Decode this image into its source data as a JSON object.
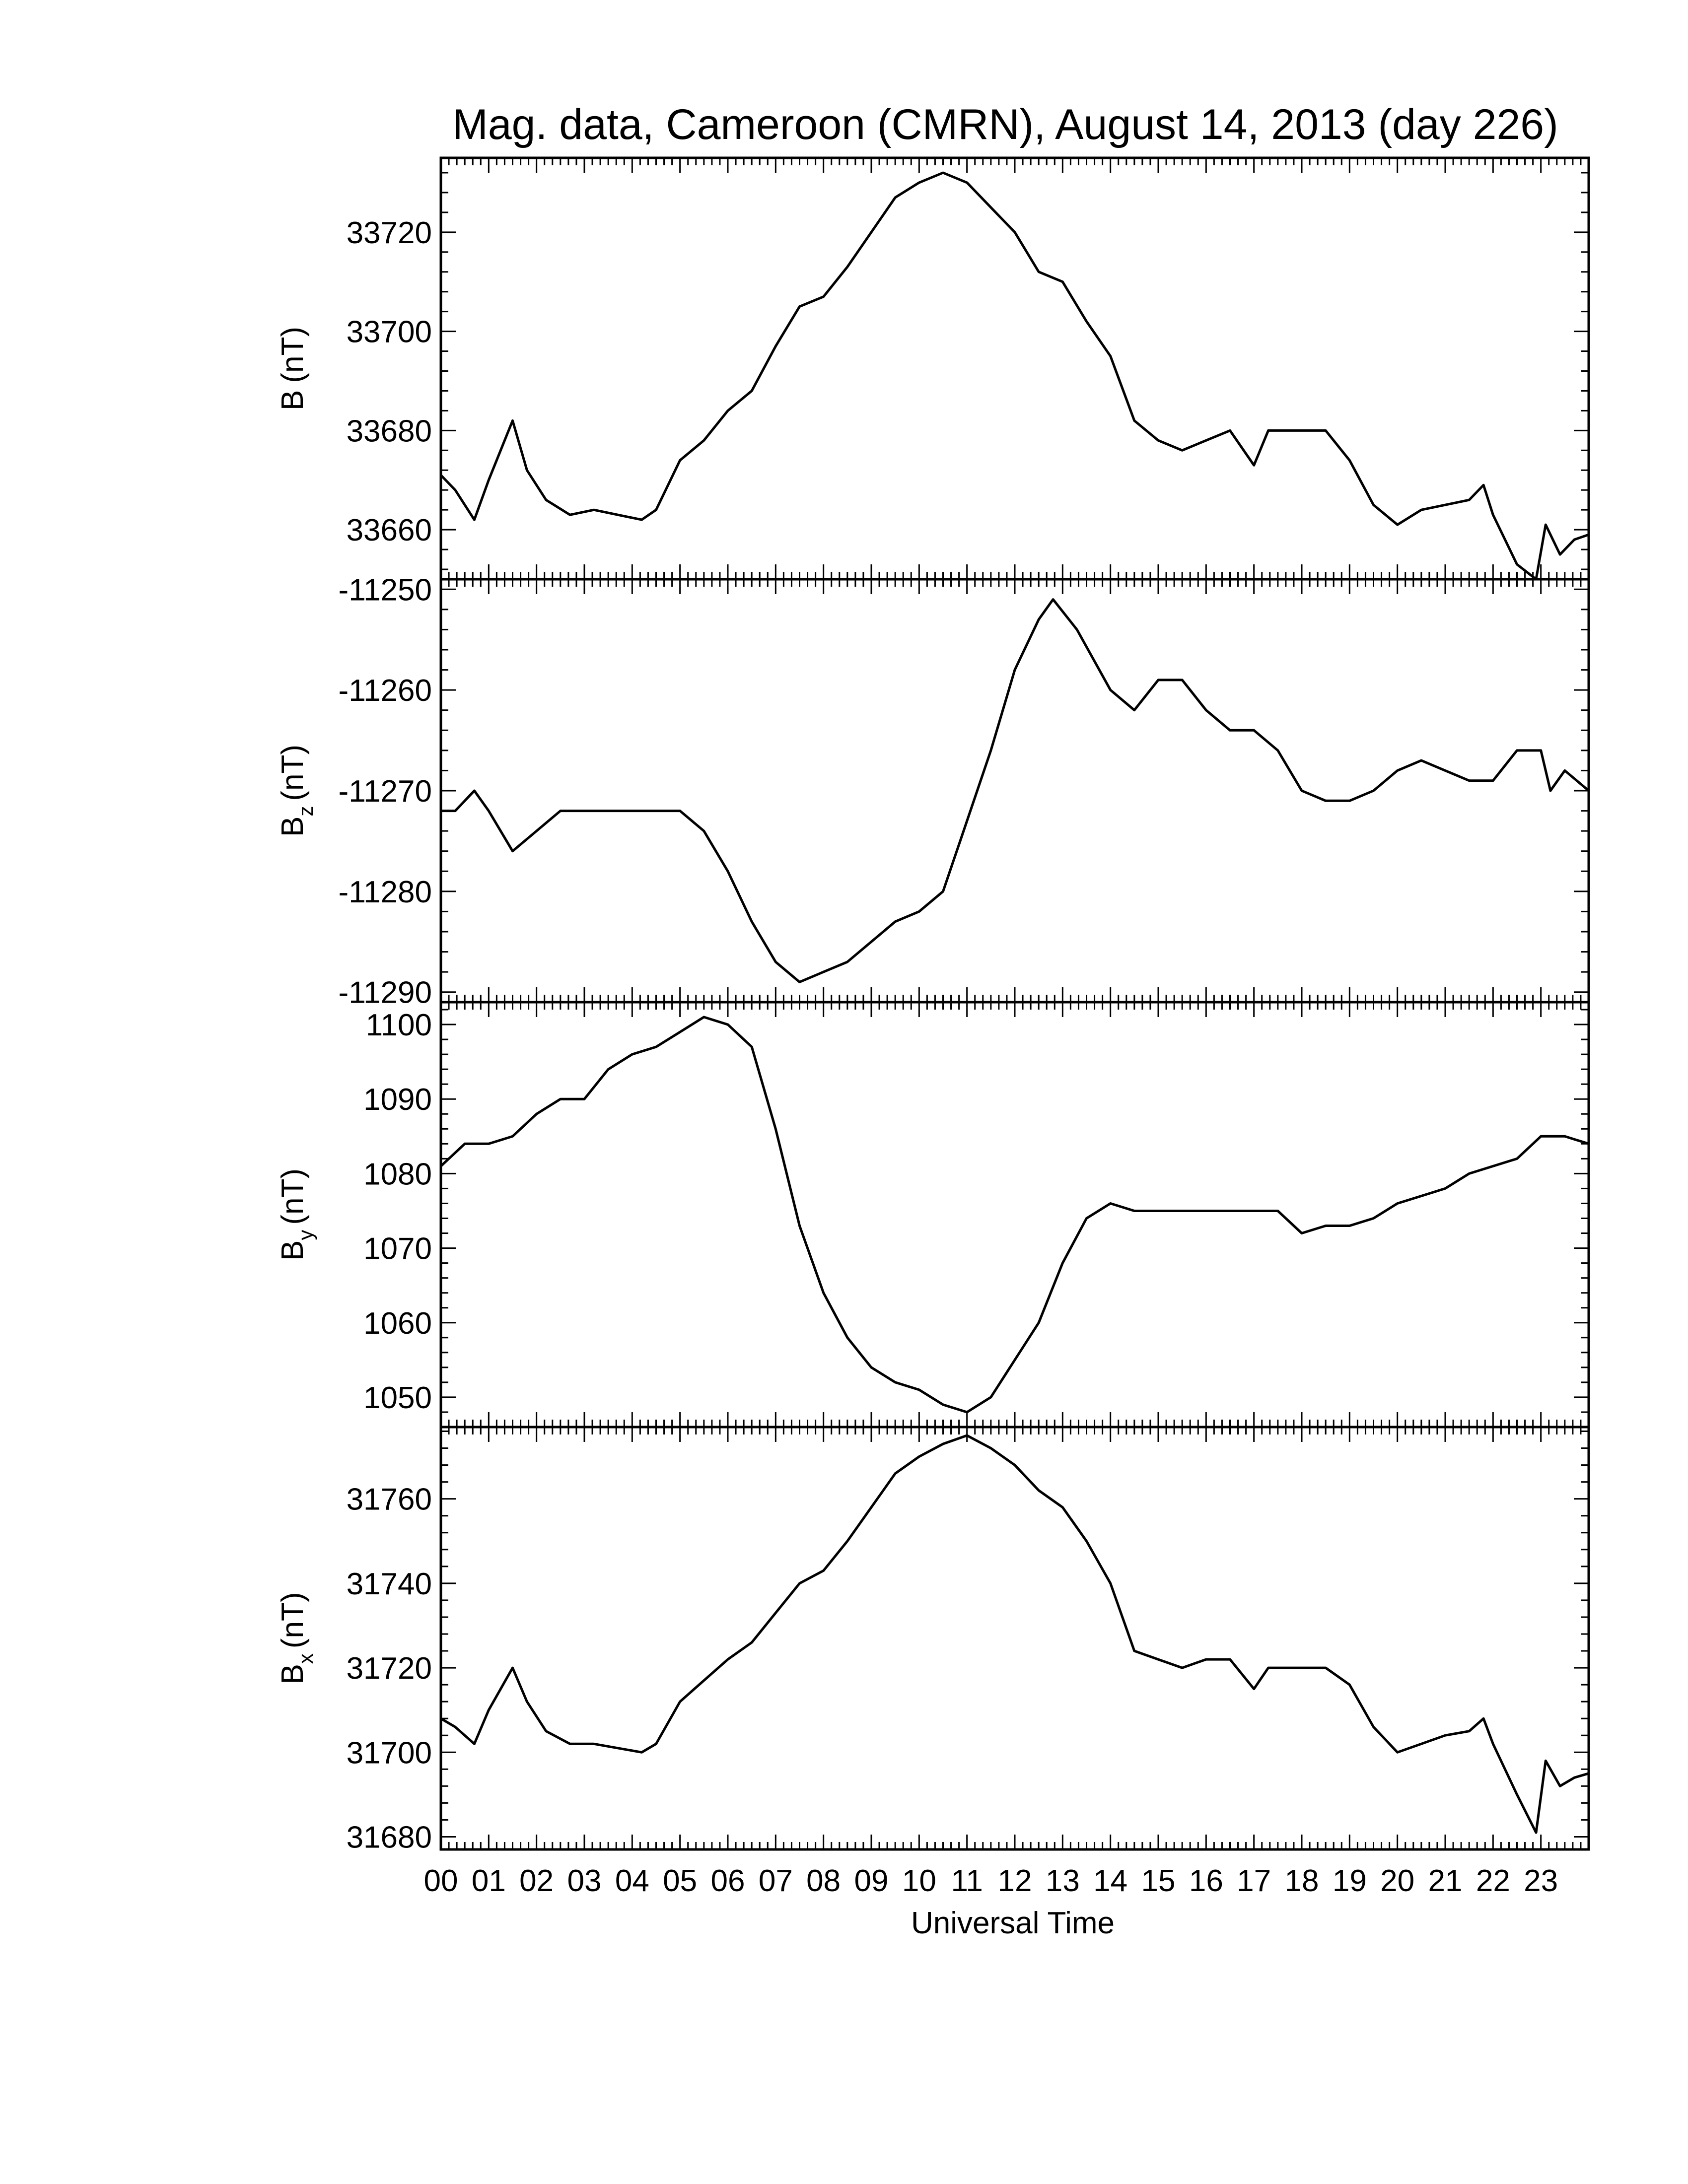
{
  "chart_data": {
    "type": "line",
    "title": "Mag. data, Cameroon (CMRN), August 14, 2013 (day 226)",
    "xlabel": "Universal Time",
    "xlim": [
      0,
      24
    ],
    "x_tick_labels": [
      "00",
      "01",
      "02",
      "03",
      "04",
      "05",
      "06",
      "07",
      "08",
      "09",
      "10",
      "11",
      "12",
      "13",
      "14",
      "15",
      "16",
      "17",
      "18",
      "19",
      "20",
      "21",
      "22",
      "23"
    ],
    "panels": [
      {
        "id": "B",
        "ylabel_main": "B",
        "ylabel_sub": "",
        "ylabel_unit": "(nT)",
        "ylim": [
          33650,
          33735
        ],
        "yticks": [
          33660,
          33680,
          33700,
          33720
        ],
        "series": [
          {
            "x": [
              0,
              0.3,
              0.7,
              1.0,
              1.5,
              1.8,
              2.2,
              2.7,
              3.2,
              3.7,
              4.2,
              4.5,
              5.0,
              5.5,
              6.0,
              6.5,
              7.0,
              7.5,
              8.0,
              8.5,
              9.0,
              9.5,
              10.0,
              10.5,
              11.0,
              11.5,
              12.0,
              12.5,
              13.0,
              13.5,
              14.0,
              14.5,
              15.0,
              15.5,
              16.0,
              16.5,
              17.0,
              17.3,
              17.8,
              18.5,
              19.0,
              19.5,
              20.0,
              20.5,
              21.0,
              21.5,
              21.8,
              22.0,
              22.5,
              22.9,
              23.1,
              23.4,
              23.7,
              24.0
            ],
            "y": [
              33671,
              33668,
              33662,
              33670,
              33682,
              33672,
              33666,
              33663,
              33664,
              33663,
              33662,
              33664,
              33674,
              33678,
              33684,
              33688,
              33697,
              33705,
              33707,
              33713,
              33720,
              33727,
              33730,
              33732,
              33730,
              33725,
              33720,
              33712,
              33710,
              33702,
              33695,
              33682,
              33678,
              33676,
              33678,
              33680,
              33673,
              33680,
              33680,
              33680,
              33674,
              33665,
              33661,
              33664,
              33665,
              33666,
              33669,
              33663,
              33653,
              33650,
              33661,
              33655,
              33658,
              33659
            ]
          }
        ]
      },
      {
        "id": "Bz",
        "ylabel_main": "B",
        "ylabel_sub": "z",
        "ylabel_unit": "(nT)",
        "ylim": [
          -11291,
          -11249
        ],
        "yticks": [
          -11290,
          -11280,
          -11270,
          -11260,
          -11250
        ],
        "series": [
          {
            "x": [
              0,
              0.3,
              0.7,
              1.0,
              1.5,
              2.0,
              2.5,
              3.0,
              3.5,
              4.0,
              4.5,
              5.0,
              5.5,
              6.0,
              6.5,
              7.0,
              7.5,
              8.0,
              8.5,
              9.0,
              9.5,
              10.0,
              10.5,
              11.0,
              11.5,
              12.0,
              12.5,
              12.8,
              13.3,
              14.0,
              14.5,
              15.0,
              15.5,
              16.0,
              16.5,
              17.0,
              17.5,
              18.0,
              18.5,
              19.0,
              19.5,
              20.0,
              20.5,
              21.0,
              21.5,
              22.0,
              22.5,
              23.0,
              23.2,
              23.5,
              24.0
            ],
            "y": [
              -11272,
              -11272,
              -11270,
              -11272,
              -11276,
              -11274,
              -11272,
              -11272,
              -11272,
              -11272,
              -11272,
              -11272,
              -11274,
              -11278,
              -11283,
              -11287,
              -11289,
              -11288,
              -11287,
              -11285,
              -11283,
              -11282,
              -11280,
              -11273,
              -11266,
              -11258,
              -11253,
              -11251,
              -11254,
              -11260,
              -11262,
              -11259,
              -11259,
              -11262,
              -11264,
              -11264,
              -11266,
              -11270,
              -11271,
              -11271,
              -11270,
              -11268,
              -11267,
              -11268,
              -11269,
              -11269,
              -11266,
              -11266,
              -11270,
              -11268,
              -11270
            ]
          }
        ]
      },
      {
        "id": "By",
        "ylabel_main": "B",
        "ylabel_sub": "y",
        "ylabel_unit": "(nT)",
        "ylim": [
          1046,
          1103
        ],
        "yticks": [
          1050,
          1060,
          1070,
          1080,
          1090,
          1100
        ],
        "series": [
          {
            "x": [
              0,
              0.5,
              1.0,
              1.5,
              2.0,
              2.5,
              3.0,
              3.5,
              4.0,
              4.5,
              5.0,
              5.5,
              6.0,
              6.5,
              7.0,
              7.5,
              8.0,
              8.5,
              9.0,
              9.5,
              10.0,
              10.5,
              11.0,
              11.5,
              12.0,
              12.5,
              13.0,
              13.5,
              14.0,
              14.5,
              15.0,
              15.5,
              16.0,
              16.5,
              17.0,
              17.5,
              18.0,
              18.5,
              19.0,
              19.5,
              20.0,
              20.5,
              21.0,
              21.5,
              22.0,
              22.5,
              23.0,
              23.5,
              24.0
            ],
            "y": [
              1081,
              1084,
              1084,
              1085,
              1088,
              1090,
              1090,
              1094,
              1096,
              1097,
              1099,
              1101,
              1100,
              1097,
              1086,
              1073,
              1064,
              1058,
              1054,
              1052,
              1051,
              1049,
              1048,
              1050,
              1055,
              1060,
              1068,
              1074,
              1076,
              1075,
              1075,
              1075,
              1075,
              1075,
              1075,
              1075,
              1072,
              1073,
              1073,
              1074,
              1076,
              1077,
              1078,
              1080,
              1081,
              1082,
              1085,
              1085,
              1084
            ]
          }
        ]
      },
      {
        "id": "Bx",
        "ylabel_main": "B",
        "ylabel_sub": "x",
        "ylabel_unit": "(nT)",
        "ylim": [
          31677,
          31777
        ],
        "yticks": [
          31680,
          31700,
          31720,
          31740,
          31760
        ],
        "series": [
          {
            "x": [
              0,
              0.3,
              0.7,
              1.0,
              1.5,
              1.8,
              2.2,
              2.7,
              3.2,
              3.7,
              4.2,
              4.5,
              5.0,
              5.5,
              6.0,
              6.5,
              7.0,
              7.5,
              8.0,
              8.5,
              9.0,
              9.5,
              10.0,
              10.5,
              11.0,
              11.5,
              12.0,
              12.5,
              13.0,
              13.5,
              14.0,
              14.5,
              15.0,
              15.5,
              16.0,
              16.5,
              17.0,
              17.3,
              17.8,
              18.5,
              19.0,
              19.5,
              20.0,
              20.5,
              21.0,
              21.5,
              21.8,
              22.0,
              22.5,
              22.9,
              23.1,
              23.4,
              23.7,
              24.0
            ],
            "y": [
              31708,
              31706,
              31702,
              31710,
              31720,
              31712,
              31705,
              31702,
              31702,
              31701,
              31700,
              31702,
              31712,
              31717,
              31722,
              31726,
              31733,
              31740,
              31743,
              31750,
              31758,
              31766,
              31770,
              31773,
              31775,
              31772,
              31768,
              31762,
              31758,
              31750,
              31740,
              31724,
              31722,
              31720,
              31722,
              31722,
              31715,
              31720,
              31720,
              31720,
              31716,
              31706,
              31700,
              31702,
              31704,
              31705,
              31708,
              31702,
              31690,
              31681,
              31698,
              31692,
              31694,
              31695
            ]
          }
        ]
      }
    ]
  }
}
